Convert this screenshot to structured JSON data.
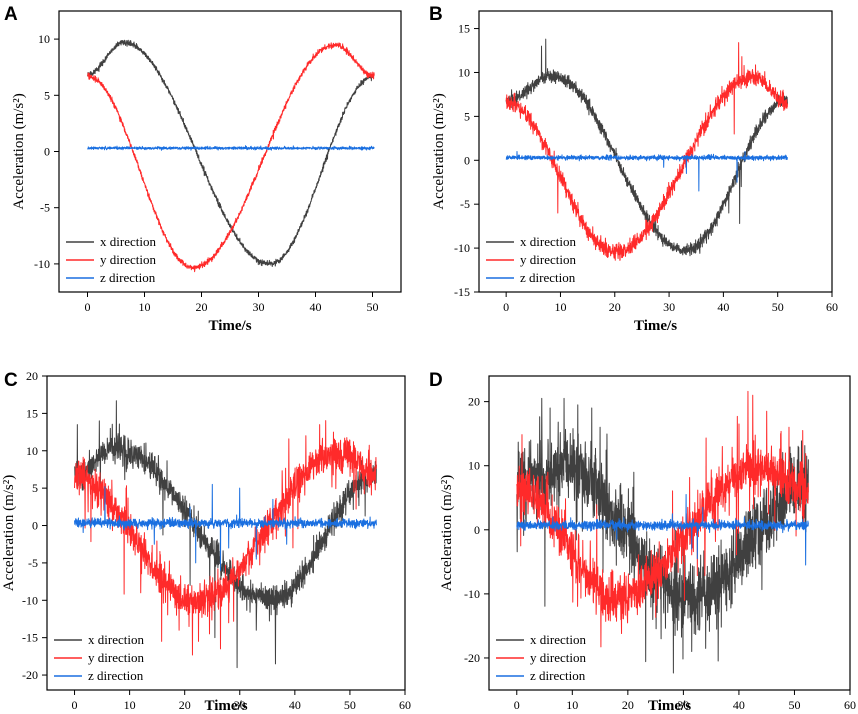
{
  "chart_data": [
    {
      "panel": "A",
      "type": "line",
      "xlabel": "Time/s",
      "ylabel": "Acceleration (m/s²)",
      "xlim": [
        -5,
        55
      ],
      "ylim": [
        -12.5,
        12.5
      ],
      "xticks": [
        0,
        10,
        20,
        30,
        40,
        50
      ],
      "yticks": [
        -10,
        -5,
        0,
        5,
        10
      ],
      "duration": 50.3,
      "legend_position": "bottom-left",
      "series": [
        {
          "name": "x direction",
          "color": "#404040",
          "start": 6.8,
          "peak": 9.7,
          "peak_t": 6.3,
          "trough": -10.0,
          "trough_t": 32,
          "end": 6.7,
          "noise": 0.12,
          "spikes": []
        },
        {
          "name": "y direction",
          "color": "#ff2a2a",
          "start": 6.7,
          "trough": -10.3,
          "trough_t": 18.5,
          "peak": 9.5,
          "peak_t": 43.5,
          "end": 6.7,
          "noise": 0.12,
          "spikes": []
        },
        {
          "name": "z direction",
          "color": "#1a6fe0",
          "start": 0.3,
          "end": 0.3,
          "noise": 0.06,
          "spikes": []
        }
      ]
    },
    {
      "panel": "B",
      "type": "line",
      "xlabel": "Time/s",
      "ylabel": "Acceleration (m/s²)",
      "xlim": [
        -5,
        60
      ],
      "ylim": [
        -15,
        17
      ],
      "xticks": [
        0,
        10,
        20,
        30,
        40,
        50,
        60
      ],
      "yticks": [
        -15,
        -10,
        -5,
        0,
        5,
        10,
        15
      ],
      "duration": 51.8,
      "legend_position": "bottom-left",
      "series": [
        {
          "name": "x direction",
          "color": "#404040",
          "start": 6.7,
          "peak": 9.6,
          "peak_t": 8.5,
          "trough": -10.3,
          "trough_t": 33,
          "end": 6.9,
          "noise": 0.35,
          "spikes": [
            [
              7.3,
              13.8
            ],
            [
              6.5,
              13.0
            ],
            [
              43.0,
              -7.2
            ],
            [
              43.3,
              -3.0
            ],
            [
              36.3,
              -8.5
            ],
            [
              5.5,
              9.0
            ],
            [
              41.0,
              -6.0
            ]
          ]
        },
        {
          "name": "y direction",
          "color": "#ff2a2a",
          "start": 6.6,
          "trough": -10.4,
          "trough_t": 20,
          "peak": 9.5,
          "peak_t": 45.5,
          "end": 6.6,
          "noise": 0.45,
          "spikes": [
            [
              42.8,
              13.4
            ],
            [
              43.4,
              11.8
            ],
            [
              43.8,
              10.8
            ],
            [
              9.5,
              -6.0
            ],
            [
              42.0,
              3.0
            ]
          ]
        },
        {
          "name": "z direction",
          "color": "#1a6fe0",
          "start": 0.3,
          "end": 0.3,
          "noise": 0.12,
          "spikes": [
            [
              33.2,
              -1.5
            ],
            [
              35.5,
              -3.5
            ],
            [
              42.5,
              -2.5
            ],
            [
              44.0,
              1.0
            ],
            [
              29.0,
              -0.8
            ],
            [
              2.0,
              1.0
            ]
          ]
        }
      ]
    },
    {
      "panel": "C",
      "type": "line",
      "xlabel": "Time/s",
      "ylabel": "Acceleration (m/s²)",
      "xlim": [
        -5,
        60
      ],
      "ylim": [
        -22,
        20
      ],
      "xticks": [
        0,
        10,
        20,
        30,
        40,
        50,
        60
      ],
      "yticks": [
        -20,
        -15,
        -10,
        -5,
        0,
        5,
        10,
        15,
        20
      ],
      "duration": 54.8,
      "legend_position": "bottom-left",
      "series": [
        {
          "name": "x direction",
          "color": "#404040",
          "start": 6.8,
          "peak": 10.2,
          "peak_t": 7.5,
          "trough": -10.0,
          "trough_t": 36,
          "end": 6.8,
          "noise": 0.9,
          "spikes": [
            [
              0.5,
              13.5
            ],
            [
              4.5,
              14.0
            ],
            [
              29.5,
              -19.0
            ],
            [
              36.5,
              -18.5
            ],
            [
              33.0,
              -14.0
            ],
            [
              25.5,
              -15.0
            ],
            [
              6.5,
              13.0
            ],
            [
              21.0,
              -8.0
            ]
          ]
        },
        {
          "name": "y direction",
          "color": "#ff2a2a",
          "start": 6.6,
          "trough": -10.2,
          "trough_t": 22,
          "peak": 9.7,
          "peak_t": 48,
          "end": 6.8,
          "noise": 1.2,
          "spikes": [
            [
              15.8,
              -15.5
            ],
            [
              22.5,
              -15.5
            ],
            [
              24.5,
              -14.5
            ],
            [
              26.5,
              -16.5
            ],
            [
              28.0,
              -13.0
            ],
            [
              44.5,
              13.5
            ],
            [
              47.0,
              12.5
            ],
            [
              42.0,
              12.0
            ],
            [
              12.0,
              -9.0
            ],
            [
              19.0,
              -14.0
            ]
          ]
        },
        {
          "name": "z direction",
          "color": "#1a6fe0",
          "start": 0.3,
          "end": 0.3,
          "noise": 0.3,
          "spikes": [
            [
              5.5,
              5.2
            ],
            [
              22.0,
              -5.0
            ],
            [
              25.0,
              5.5
            ],
            [
              26.5,
              -6.0
            ],
            [
              30.0,
              5.0
            ],
            [
              33.0,
              -4.5
            ],
            [
              36.0,
              3.5
            ],
            [
              21.0,
              2.5
            ],
            [
              28.0,
              -3.0
            ],
            [
              38.5,
              -2.5
            ],
            [
              14.5,
              -2.5
            ]
          ]
        }
      ]
    },
    {
      "panel": "D",
      "type": "line",
      "xlabel": "Time/s",
      "ylabel": "Acceleration (m/s²)",
      "xlim": [
        -5,
        60
      ],
      "ylim": [
        -25,
        24
      ],
      "xticks": [
        0,
        10,
        20,
        30,
        40,
        50,
        60
      ],
      "yticks": [
        -20,
        -10,
        0,
        10,
        20
      ],
      "duration": 52.5,
      "legend_position": "bottom-left",
      "series": [
        {
          "name": "x direction",
          "color": "#404040",
          "start": 6.8,
          "peak": 9.8,
          "peak_t": 8,
          "trough": -10.5,
          "trough_t": 31,
          "end": 6.5,
          "noise": 2.8,
          "spikes": [
            [
              4.5,
              20.5
            ],
            [
              8.5,
              20.5
            ],
            [
              11.0,
              19.5
            ],
            [
              13.5,
              19.0
            ],
            [
              6.0,
              19.0
            ],
            [
              2.5,
              14.0
            ],
            [
              28.5,
              -16.5
            ],
            [
              31.5,
              -19.0
            ],
            [
              34.0,
              -18.5
            ],
            [
              36.0,
              -15.5
            ],
            [
              26.0,
              -17.0
            ],
            [
              15.0,
              16.0
            ],
            [
              24.5,
              -14.0
            ]
          ]
        },
        {
          "name": "y direction",
          "color": "#ff2a2a",
          "start": 6.6,
          "trough": -10.5,
          "trough_t": 18,
          "peak": 9.6,
          "peak_t": 43.5,
          "end": 6.5,
          "noise": 1.8,
          "spikes": [
            [
              42.5,
              21.0
            ],
            [
              45.0,
              18.5
            ],
            [
              49.0,
              16.0
            ],
            [
              51.5,
              15.5
            ],
            [
              40.0,
              16.5
            ],
            [
              47.5,
              15.0
            ],
            [
              37.0,
              13.0
            ],
            [
              24.5,
              -9.0
            ]
          ]
        },
        {
          "name": "z direction",
          "color": "#1a6fe0",
          "start": 0.7,
          "end": 0.7,
          "noise": 0.35,
          "spikes": [
            [
              30.5,
              5.5
            ],
            [
              32.5,
              -4.5
            ],
            [
              33.5,
              3.5
            ],
            [
              31.5,
              -3.0
            ],
            [
              52.0,
              -5.5
            ],
            [
              6.5,
              2.0
            ],
            [
              18.0,
              -1.5
            ],
            [
              41.0,
              2.0
            ],
            [
              28.0,
              2.5
            ]
          ]
        }
      ]
    }
  ]
}
